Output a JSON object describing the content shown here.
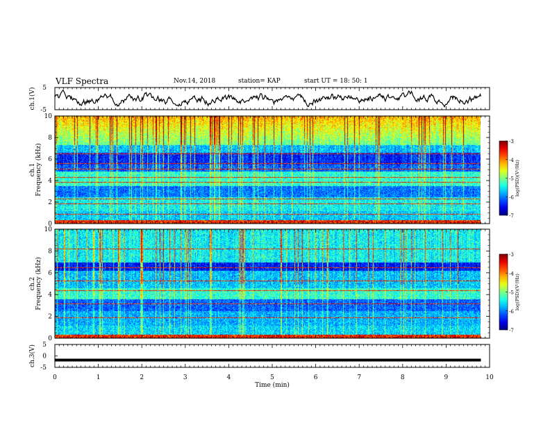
{
  "header": {
    "title": "VLF Spectra",
    "date": "Nov.14, 2018",
    "station": "station= KAP",
    "start": "start  UT =   18: 50: 1"
  },
  "chart_data": [
    {
      "type": "line",
      "name": "ch1_waveform",
      "ylabel": "ch.1(V)",
      "ylim": [
        -5,
        5
      ],
      "yticks": [
        "5",
        "-5"
      ],
      "xlim": [
        0,
        10
      ],
      "series": [
        {
          "values_desc": "noisy waveform",
          "x_range": [
            0,
            9.8
          ],
          "y_range_approx": [
            -3,
            3
          ]
        }
      ]
    },
    {
      "type": "heatmap",
      "name": "ch1_spectrogram",
      "ylabel": "ch.1\nFrequency (kHz)",
      "ylabel_line1": "ch.1",
      "ylabel_line2": "Frequency (kHz)",
      "ylim": [
        0,
        10
      ],
      "yticks": [
        "0",
        "2",
        "4",
        "6",
        "8",
        "10"
      ],
      "xlim": [
        0,
        10
      ],
      "x_extent": [
        0,
        9.8
      ],
      "colorbar": {
        "label": "log(PSD)(V²/Hz)",
        "range": [
          -7,
          -3
        ],
        "ticks": [
          "-3",
          "-4",
          "-5",
          "-6",
          "-7"
        ]
      }
    },
    {
      "type": "heatmap",
      "name": "ch2_spectrogram",
      "ylabel_line1": "ch.2",
      "ylabel_line2": "Frequency (kHz)",
      "ylim": [
        0,
        10
      ],
      "yticks": [
        "0",
        "2",
        "4",
        "6",
        "8",
        "10"
      ],
      "xlim": [
        0,
        10
      ],
      "x_extent": [
        0,
        9.8
      ],
      "colorbar": {
        "label": "log(PSD)(V²/Hz)",
        "range": [
          -7,
          -3
        ],
        "ticks": [
          "-3",
          "-4",
          "-5",
          "-6",
          "-7"
        ]
      }
    },
    {
      "type": "line",
      "name": "ch3_waveform",
      "ylabel": "ch.3(V)",
      "ylim": [
        -5,
        5
      ],
      "yticks": [
        "5",
        "0",
        "-5"
      ],
      "xlim": [
        0,
        10
      ],
      "series": [
        {
          "values_desc": "flat",
          "x_range": [
            0,
            9.8
          ],
          "y": -1.8
        }
      ]
    }
  ],
  "xaxis": {
    "label": "Time  (min)",
    "ticks": [
      "0",
      "1",
      "2",
      "3",
      "4",
      "5",
      "6",
      "7",
      "8",
      "9",
      "10"
    ]
  },
  "colors": {
    "waveform": "#000000",
    "bg": "#ffffff"
  }
}
